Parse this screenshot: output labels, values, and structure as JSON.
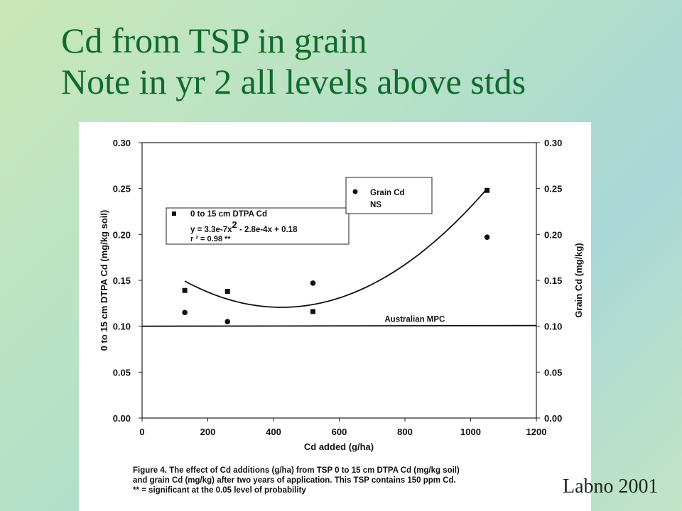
{
  "slide": {
    "title_line1": "Cd from TSP in grain",
    "title_line2": "Note in yr 2 all levels above stds",
    "credit": "Labno 2001"
  },
  "caption": {
    "line1": "Figure 4. The effect of Cd additions (g/ha) from TSP 0 to 15 cm DTPA Cd (mg/kg soil)",
    "line2": "and grain Cd (mg/kg) after two years of application. This TSP contains 150 ppm Cd.",
    "line3": "** = significant at the 0.05 level of probability"
  },
  "chart_data": {
    "type": "scatter",
    "xlabel": "Cd added (g/ha)",
    "ylabel": "0 to 15 cm DTPA Cd (mg/kg soil)",
    "y2label": "Grain Cd (mg/kg)",
    "xlim": [
      0,
      1200
    ],
    "ylim": [
      0,
      0.3
    ],
    "y2lim": [
      0,
      0.3
    ],
    "xticks": [
      "0",
      "200",
      "400",
      "600",
      "800",
      "1000",
      "1200"
    ],
    "yticks": [
      "0.00",
      "0.05",
      "0.10",
      "0.15",
      "0.20",
      "0.25",
      "0.30"
    ],
    "y2ticks": [
      "0.00",
      "0.05",
      "0.10",
      "0.15",
      "0.20",
      "0.25",
      "0.30"
    ],
    "series": [
      {
        "name": "0 to 15 cm DTPA Cd",
        "marker": "square",
        "axis": "left",
        "x": [
          130,
          260,
          520,
          1050
        ],
        "y": [
          0.139,
          0.138,
          0.116,
          0.248
        ]
      },
      {
        "name": "Grain Cd",
        "marker": "circle",
        "axis": "right",
        "x": [
          130,
          260,
          520,
          1050
        ],
        "y": [
          0.115,
          0.105,
          0.147,
          0.197
        ]
      }
    ],
    "fit": {
      "series": "0 to 15 cm DTPA Cd",
      "equation": "y = 3.3e-7x",
      "equation_exp": "2",
      "equation_rest": " - 2.8e-4x + 0.18",
      "r2": "r ² = 0.98 **",
      "x_range": [
        130,
        1050
      ],
      "coefficients": [
        3.3e-07,
        -0.00028,
        0.18
      ]
    },
    "grain_note": "NS",
    "reference_line": {
      "label": "Australian MPC",
      "y": 0.1
    },
    "legend_position": "top"
  }
}
